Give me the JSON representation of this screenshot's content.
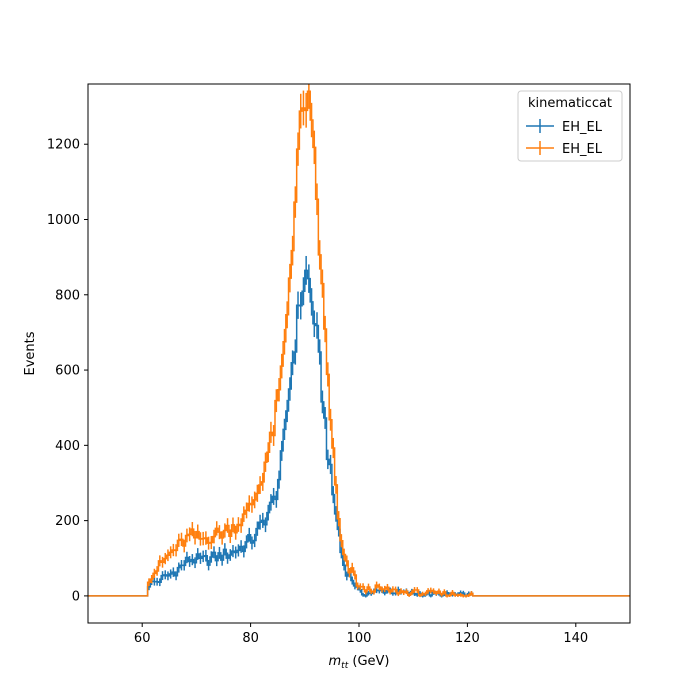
{
  "chart_data": {
    "type": "line",
    "style": "step-histogram-with-errorbars",
    "xlabel_main": "m",
    "xlabel_sub": "tt",
    "xlabel_unit": " (GeV)",
    "ylabel": "Events",
    "xlim": [
      50,
      150
    ],
    "ylim": [
      -72,
      1360
    ],
    "x_ticks": [
      60,
      80,
      100,
      120,
      140
    ],
    "y_ticks": [
      0,
      200,
      400,
      600,
      800,
      1000,
      1200
    ],
    "grid": false,
    "legend": {
      "title": "kinematiccat",
      "placement": "top-right"
    },
    "bin_width": 0.5,
    "x_range": [
      61,
      121
    ],
    "series": [
      {
        "name": "EH_EL",
        "color": "#1f77b4",
        "anchors": [
          [
            61,
            30
          ],
          [
            63,
            40
          ],
          [
            65,
            55
          ],
          [
            67,
            75
          ],
          [
            69,
            100
          ],
          [
            71,
            92
          ],
          [
            73,
            100
          ],
          [
            75,
            108
          ],
          [
            77,
            118
          ],
          [
            79,
            135
          ],
          [
            81,
            160
          ],
          [
            83,
            215
          ],
          [
            84,
            240
          ],
          [
            85,
            290
          ],
          [
            86,
            380
          ],
          [
            87,
            530
          ],
          [
            88,
            650
          ],
          [
            89,
            770
          ],
          [
            90,
            840
          ],
          [
            90.5,
            870
          ],
          [
            91,
            800
          ],
          [
            92,
            720
          ],
          [
            93,
            580
          ],
          [
            94,
            420
          ],
          [
            95,
            290
          ],
          [
            96,
            200
          ],
          [
            97,
            90
          ],
          [
            98,
            60
          ],
          [
            99,
            40
          ],
          [
            100,
            10
          ],
          [
            101,
            5
          ],
          [
            103,
            10
          ],
          [
            105,
            15
          ],
          [
            108,
            8
          ],
          [
            112,
            5
          ],
          [
            116,
            3
          ],
          [
            121,
            2
          ]
        ]
      },
      {
        "name": "EH_EL",
        "color": "#ff7f0e",
        "anchors": [
          [
            61,
            45
          ],
          [
            63,
            75
          ],
          [
            65,
            110
          ],
          [
            67,
            135
          ],
          [
            69,
            160
          ],
          [
            71,
            150
          ],
          [
            73,
            160
          ],
          [
            75,
            170
          ],
          [
            77,
            185
          ],
          [
            79,
            210
          ],
          [
            81,
            265
          ],
          [
            82,
            310
          ],
          [
            83,
            370
          ],
          [
            84,
            420
          ],
          [
            85,
            510
          ],
          [
            86,
            620
          ],
          [
            87,
            800
          ],
          [
            88,
            1000
          ],
          [
            89,
            1230
          ],
          [
            90,
            1300
          ],
          [
            90.5,
            1340
          ],
          [
            91,
            1260
          ],
          [
            92,
            1120
          ],
          [
            93,
            860
          ],
          [
            94,
            640
          ],
          [
            95,
            430
          ],
          [
            96,
            230
          ],
          [
            97,
            110
          ],
          [
            98,
            70
          ],
          [
            99,
            60
          ],
          [
            100,
            25
          ],
          [
            101,
            15
          ],
          [
            103,
            20
          ],
          [
            105,
            15
          ],
          [
            108,
            10
          ],
          [
            112,
            8
          ],
          [
            116,
            5
          ],
          [
            121,
            3
          ]
        ]
      }
    ]
  }
}
